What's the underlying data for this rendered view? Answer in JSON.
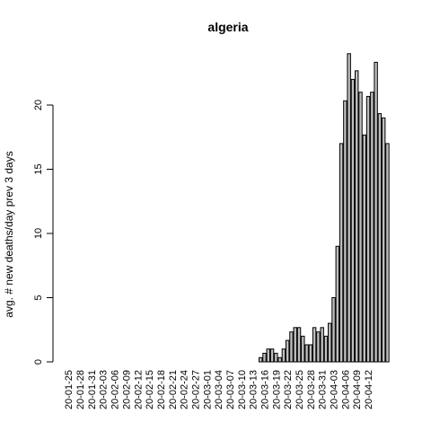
{
  "chart_data": {
    "type": "bar",
    "title": "algeria",
    "xlabel": "",
    "ylabel": "avg. # new deaths/day prev  3  days",
    "ylim": [
      0,
      25
    ],
    "yticks": [
      0,
      5,
      10,
      15,
      20
    ],
    "grid": false,
    "start_date": "20-01-25",
    "xtick_labels": [
      "20-01-25",
      "20-01-28",
      "20-01-31",
      "20-02-03",
      "20-02-06",
      "20-02-09",
      "20-02-12",
      "20-02-15",
      "20-02-18",
      "20-02-21",
      "20-02-24",
      "20-02-27",
      "20-03-01",
      "20-03-04",
      "20-03-07",
      "20-03-10",
      "20-03-13",
      "20-03-16",
      "20-03-19",
      "20-03-22",
      "20-03-25",
      "20-03-28",
      "20-03-31",
      "20-04-03",
      "20-04-06",
      "20-04-09",
      "20-04-12"
    ],
    "values": [
      0,
      0,
      0,
      0,
      0,
      0,
      0,
      0,
      0,
      0,
      0,
      0,
      0,
      0,
      0,
      0,
      0,
      0,
      0,
      0,
      0,
      0,
      0,
      0,
      0,
      0,
      0,
      0,
      0,
      0,
      0,
      0,
      0,
      0,
      0,
      0,
      0,
      0,
      0,
      0,
      0,
      0,
      0,
      0,
      0,
      0,
      0,
      0,
      0,
      0,
      0.33,
      0.67,
      1,
      1,
      0.67,
      0.33,
      1,
      1.67,
      2.33,
      2.67,
      2.67,
      2,
      1.33,
      1.33,
      2.67,
      2.33,
      2.67,
      2,
      3,
      5,
      9,
      17,
      20.33,
      24,
      22,
      22.67,
      21,
      17.67,
      20.67,
      21,
      23.33,
      19.33,
      19,
      17
    ]
  }
}
